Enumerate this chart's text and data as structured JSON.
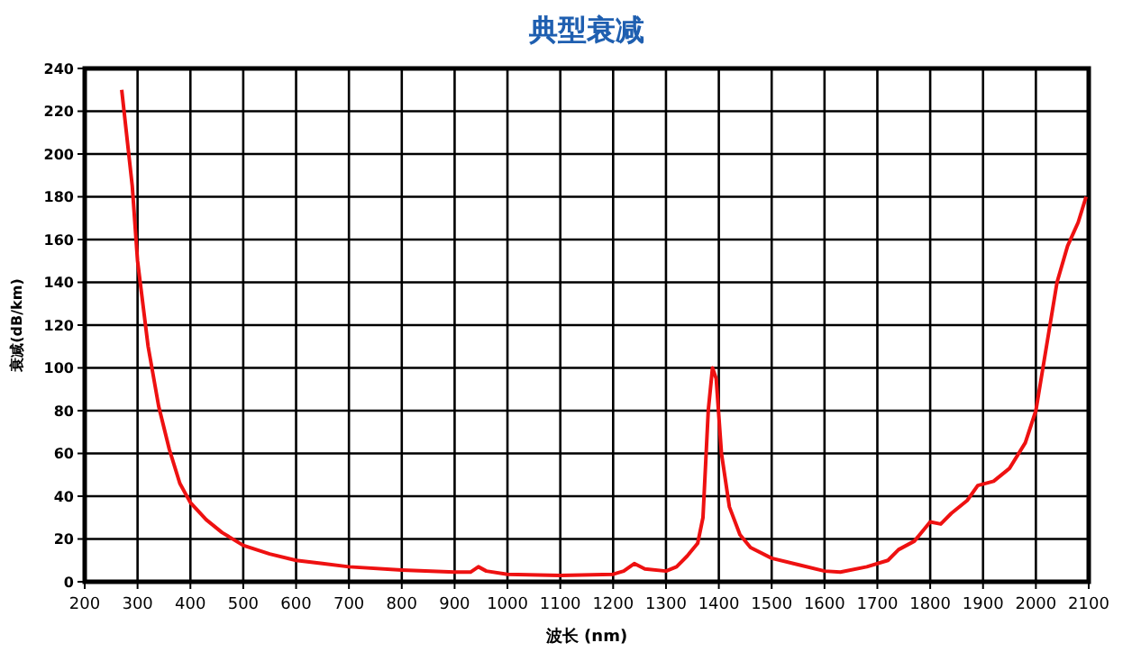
{
  "chart_data": {
    "type": "line",
    "title": "典型衰减",
    "xlabel": "波长 (nm)",
    "ylabel": "衰减(dB/km)",
    "xlim": [
      200,
      2100
    ],
    "xticks": [
      200,
      300,
      400,
      500,
      600,
      700,
      800,
      900,
      1000,
      1100,
      1200,
      1300,
      1400,
      1500,
      1600,
      1700,
      1800,
      1900,
      2000,
      2100
    ],
    "ylim": [
      0,
      240
    ],
    "yticks": [
      0,
      20,
      40,
      60,
      80,
      100,
      120,
      140,
      160,
      180,
      200,
      220,
      240
    ],
    "grid": true,
    "series": [
      {
        "color": "#ee1111",
        "x": [
          270,
          290,
          300,
          320,
          340,
          360,
          380,
          400,
          430,
          460,
          500,
          550,
          600,
          650,
          700,
          800,
          900,
          930,
          945,
          960,
          1000,
          1100,
          1200,
          1220,
          1240,
          1260,
          1300,
          1320,
          1340,
          1360,
          1370,
          1380,
          1388,
          1395,
          1405,
          1420,
          1440,
          1460,
          1500,
          1550,
          1600,
          1630,
          1680,
          1720,
          1740,
          1770,
          1800,
          1820,
          1840,
          1870,
          1890,
          1920,
          1950,
          1980,
          2000,
          2020,
          2040,
          2060,
          2080,
          2095
        ],
        "values": [
          230,
          185,
          150,
          110,
          82,
          62,
          46,
          37,
          29,
          23,
          17,
          13,
          10,
          8.5,
          7,
          5.5,
          4.5,
          4.5,
          7,
          5,
          3.5,
          3,
          3.5,
          5,
          8.5,
          6,
          5,
          7,
          12,
          18,
          30,
          80,
          100,
          95,
          60,
          35,
          22,
          16,
          11,
          8,
          5,
          4.5,
          7,
          10,
          15,
          19,
          28,
          27,
          32,
          38,
          45,
          47,
          53,
          65,
          80,
          110,
          140,
          157,
          168,
          180
        ]
      }
    ]
  }
}
